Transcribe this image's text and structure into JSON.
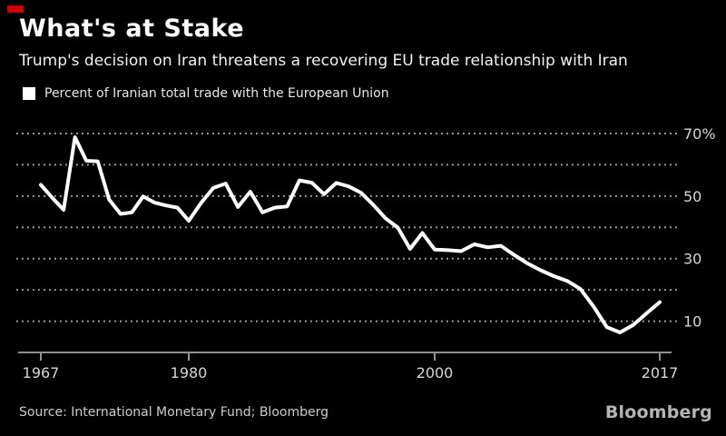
{
  "accent_color": "#cc0000",
  "header": {
    "title": "What's at Stake",
    "subtitle": "Trump's decision on Iran threatens a recovering EU trade relationship with Iran"
  },
  "legend": {
    "label": "Percent of Iranian total trade with the European Union",
    "swatch_color": "#ffffff"
  },
  "footer": {
    "source": "Source: International Monetary Fund; Bloomberg",
    "brand": "Bloomberg"
  },
  "chart_data": {
    "type": "line",
    "title": "Percent of Iranian total trade with the European Union",
    "xlabel": "",
    "ylabel": "",
    "ylim": [
      0,
      74
    ],
    "x_range": [
      1967,
      2017
    ],
    "grid": "horizontal dotted",
    "gridlines": [
      10,
      20,
      30,
      40,
      50,
      60,
      70
    ],
    "y_ticks": [
      70,
      50,
      30,
      10
    ],
    "y_tick_labels": [
      "70%",
      "50",
      "30",
      "10"
    ],
    "x_tick_years": [
      1967,
      1980,
      2000,
      2017
    ],
    "x_tick_labels": [
      "1967",
      "1980",
      "2000",
      "2017"
    ],
    "line_color": "#ffffff",
    "background": "#000000",
    "grid_color": "#a8a8a8",
    "axis_color": "#8f8f8f",
    "label_color": "#d6d6d6",
    "x": [
      1967,
      1968,
      1969,
      1970,
      1971,
      1972,
      1973,
      1974,
      1975,
      1976,
      1977,
      1978,
      1979,
      1980,
      1981,
      1982,
      1983,
      1984,
      1985,
      1986,
      1987,
      1988,
      1989,
      1990,
      1991,
      1992,
      1993,
      1994,
      1995,
      1996,
      1997,
      1998,
      1999,
      2000,
      2001,
      2002,
      2003,
      2004,
      2005,
      2006,
      2007,
      2008,
      2009,
      2010,
      2011,
      2012,
      2013,
      2014,
      2015,
      2016,
      2017
    ],
    "values": [
      53.6,
      49.5,
      45.6,
      68.8,
      61.3,
      61.1,
      48.9,
      44.3,
      44.8,
      49.9,
      47.9,
      47.0,
      46.3,
      42.1,
      47.8,
      52.6,
      54.0,
      46.5,
      51.4,
      44.8,
      46.3,
      46.7,
      55.0,
      54.3,
      50.6,
      54.2,
      53.1,
      51.1,
      47.2,
      42.9,
      39.9,
      33.1,
      38.2,
      32.9,
      32.7,
      32.4,
      34.6,
      33.6,
      34.1,
      31.2,
      28.5,
      26.3,
      24.4,
      22.9,
      20.3,
      14.7,
      8.1,
      6.4,
      8.8,
      12.5,
      16.1
    ]
  }
}
